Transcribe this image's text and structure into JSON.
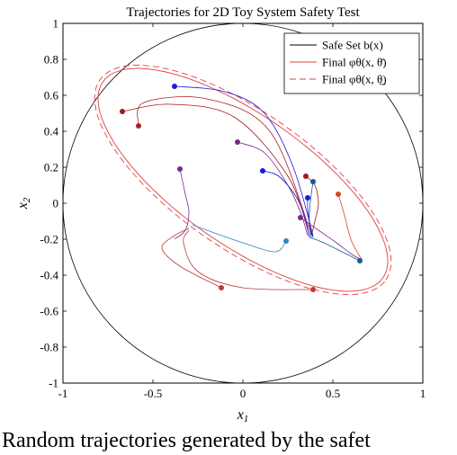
{
  "chart_data": {
    "type": "line",
    "title": "Trajectories for 2D Toy System Safety Test",
    "xlabel": "x1",
    "ylabel": "x2",
    "xlim": [
      -1,
      1
    ],
    "ylim": [
      -1,
      1
    ],
    "x_ticks": [
      -1,
      -0.5,
      0,
      0.5,
      1
    ],
    "x_tick_labels": [
      "-1",
      "-0.5",
      "0",
      "0.5",
      "1"
    ],
    "y_ticks": [
      -1,
      -0.8,
      -0.6,
      -0.4,
      -0.2,
      0,
      0.2,
      0.4,
      0.6,
      0.8,
      1
    ],
    "y_tick_labels": [
      "-1",
      "-0.8",
      "-0.6",
      "-0.4",
      "-0.2",
      "0",
      "0.2",
      "0.4",
      "0.6",
      "0.8",
      "1"
    ],
    "grid": false,
    "legend_position": "top-right",
    "legend": [
      {
        "label": "Safe Set b(x)",
        "style": "solid",
        "color": "#000000"
      },
      {
        "label": "Final φθ(x, θ̄)",
        "style": "solid",
        "color": "#e04040"
      },
      {
        "label": "Final φθ(x, θ̲)",
        "style": "dashed",
        "color": "#e04040"
      }
    ],
    "safe_set": {
      "type": "circle",
      "center": [
        0,
        0
      ],
      "radius": 1
    },
    "final_sets": [
      {
        "style": "solid",
        "center": [
          0,
          0.13
        ],
        "a": 0.95,
        "b": 0.36,
        "angle_deg": -35
      },
      {
        "style": "dashed",
        "center": [
          0,
          0.13
        ],
        "a": 0.97,
        "b": 0.38,
        "angle_deg": -35
      }
    ],
    "trajectories": [
      {
        "color": "#1a1ad6",
        "points": [
          [
            -0.38,
            0.65
          ],
          [
            -0.1,
            0.62
          ],
          [
            0.12,
            0.5
          ],
          [
            0.28,
            0.2
          ],
          [
            0.39,
            -0.18
          ]
        ]
      },
      {
        "color": "#a01818",
        "points": [
          [
            -0.67,
            0.51
          ],
          [
            -0.4,
            0.55
          ],
          [
            -0.05,
            0.48
          ],
          [
            0.25,
            0.15
          ],
          [
            0.37,
            -0.18
          ]
        ]
      },
      {
        "color": "#b02020",
        "points": [
          [
            -0.58,
            0.43
          ],
          [
            -0.55,
            0.56
          ],
          [
            -0.2,
            0.58
          ],
          [
            0.15,
            0.4
          ],
          [
            0.38,
            -0.17
          ]
        ]
      },
      {
        "color": "#7a2a8c",
        "points": [
          [
            -0.35,
            0.19
          ],
          [
            -0.32,
            0.05
          ],
          [
            -0.3,
            -0.05
          ],
          [
            -0.32,
            -0.15
          ],
          [
            -0.38,
            -0.2
          ]
        ]
      },
      {
        "color": "#7a2a8c",
        "points": [
          [
            -0.03,
            0.34
          ],
          [
            0.12,
            0.28
          ],
          [
            0.25,
            0.1
          ],
          [
            0.32,
            -0.05
          ],
          [
            0.36,
            -0.18
          ]
        ]
      },
      {
        "color": "#1a1ad6",
        "points": [
          [
            0.11,
            0.18
          ],
          [
            0.2,
            0.15
          ],
          [
            0.3,
            0.03
          ],
          [
            0.35,
            -0.1
          ],
          [
            0.37,
            -0.19
          ]
        ]
      },
      {
        "color": "#a01818",
        "points": [
          [
            0.35,
            0.15
          ],
          [
            0.4,
            0.1
          ],
          [
            0.42,
            0.0
          ],
          [
            0.4,
            -0.1
          ],
          [
            0.38,
            -0.18
          ]
        ]
      },
      {
        "color": "#1a5a9a",
        "points": [
          [
            0.39,
            0.12
          ],
          [
            0.38,
            0.05
          ],
          [
            0.37,
            -0.05
          ],
          [
            0.37,
            -0.13
          ],
          [
            0.38,
            -0.19
          ]
        ]
      },
      {
        "color": "#1a1ad6",
        "points": [
          [
            0.36,
            0.03
          ],
          [
            0.36,
            -0.03
          ],
          [
            0.37,
            -0.1
          ],
          [
            0.38,
            -0.16
          ],
          [
            0.39,
            -0.19
          ]
        ]
      },
      {
        "color": "#d04a2a",
        "points": [
          [
            0.53,
            0.05
          ],
          [
            0.56,
            -0.05
          ],
          [
            0.6,
            -0.2
          ],
          [
            0.64,
            -0.28
          ],
          [
            0.66,
            -0.31
          ]
        ]
      },
      {
        "color": "#7a2a8c",
        "points": [
          [
            0.32,
            -0.08
          ],
          [
            0.42,
            -0.15
          ],
          [
            0.52,
            -0.22
          ],
          [
            0.6,
            -0.28
          ],
          [
            0.65,
            -0.31
          ]
        ]
      },
      {
        "color": "#1a5a9a",
        "points": [
          [
            0.65,
            -0.32
          ],
          [
            0.55,
            -0.27
          ],
          [
            0.45,
            -0.22
          ],
          [
            0.4,
            -0.2
          ],
          [
            0.37,
            -0.19
          ]
        ]
      },
      {
        "color": "#2a86c8",
        "points": [
          [
            0.24,
            -0.21
          ],
          [
            0.18,
            -0.27
          ],
          [
            0.0,
            -0.22
          ],
          [
            -0.2,
            -0.15
          ],
          [
            -0.28,
            -0.12
          ]
        ]
      },
      {
        "color": "#c03a3a",
        "points": [
          [
            -0.12,
            -0.47
          ],
          [
            -0.35,
            -0.35
          ],
          [
            -0.45,
            -0.25
          ],
          [
            -0.38,
            -0.18
          ],
          [
            -0.3,
            -0.14
          ]
        ]
      },
      {
        "color": "#c03a3a",
        "points": [
          [
            0.39,
            -0.48
          ],
          [
            0.0,
            -0.47
          ],
          [
            -0.25,
            -0.38
          ],
          [
            -0.33,
            -0.22
          ],
          [
            -0.3,
            -0.15
          ]
        ]
      }
    ]
  },
  "caption": "Random trajectories generated by the safet"
}
